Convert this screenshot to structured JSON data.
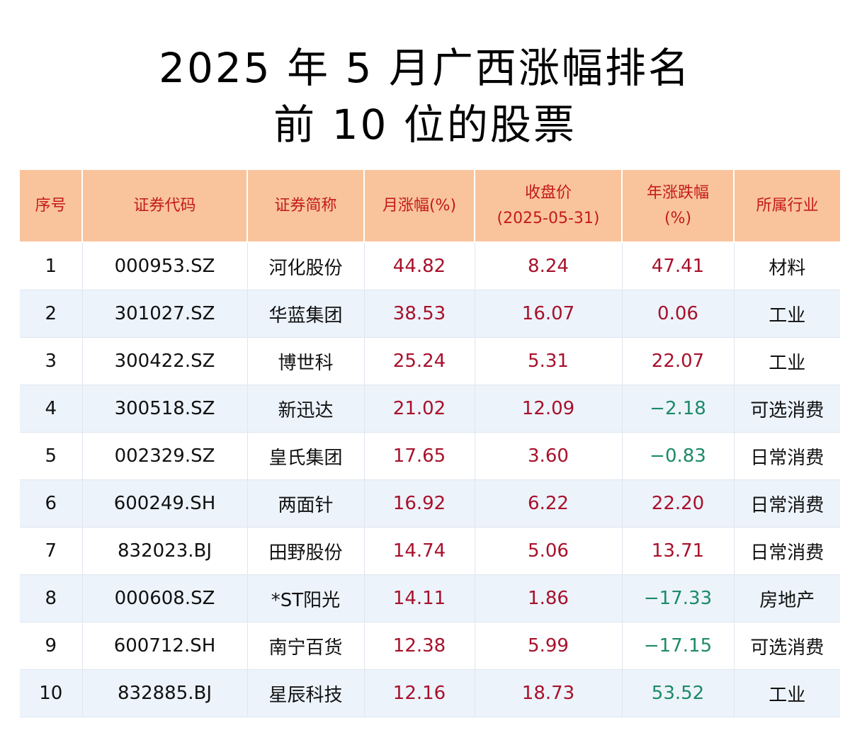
{
  "title": {
    "line1": "2025 年 5 月广西涨幅排名",
    "line2": "前 10 位的股票"
  },
  "colors": {
    "header_bg": "#f9c49c",
    "header_text": "#c41a1a",
    "positive": "#a8112b",
    "negative": "#1d8a68",
    "row_alt_bg": "#ecf3fb"
  },
  "table": {
    "headers": {
      "rank": "序号",
      "code": "证券代码",
      "name": "证券简称",
      "monthly": "月涨幅(%)",
      "close_line1": "收盘价",
      "close_line2": "(2025-05-31)",
      "yearly_line1": "年涨跌幅",
      "yearly_line2": "(%)",
      "industry": "所属行业"
    },
    "rows": [
      {
        "rank": "1",
        "code": "000953.SZ",
        "name": "河化股份",
        "monthly": "44.82",
        "close": "8.24",
        "yearly": "47.41",
        "industry": "材料"
      },
      {
        "rank": "2",
        "code": "301027.SZ",
        "name": "华蓝集团",
        "monthly": "38.53",
        "close": "16.07",
        "yearly": "0.06",
        "industry": "工业"
      },
      {
        "rank": "3",
        "code": "300422.SZ",
        "name": "博世科",
        "monthly": "25.24",
        "close": "5.31",
        "yearly": "22.07",
        "industry": "工业"
      },
      {
        "rank": "4",
        "code": "300518.SZ",
        "name": "新迅达",
        "monthly": "21.02",
        "close": "12.09",
        "yearly": "−2.18",
        "industry": "可选消费"
      },
      {
        "rank": "5",
        "code": "002329.SZ",
        "name": "皇氏集团",
        "monthly": "17.65",
        "close": "3.60",
        "yearly": "−0.83",
        "industry": "日常消费"
      },
      {
        "rank": "6",
        "code": "600249.SH",
        "name": "两面针",
        "monthly": "16.92",
        "close": "6.22",
        "yearly": "22.20",
        "industry": "日常消费"
      },
      {
        "rank": "7",
        "code": "832023.BJ",
        "name": "田野股份",
        "monthly": "14.74",
        "close": "5.06",
        "yearly": "13.71",
        "industry": "日常消费"
      },
      {
        "rank": "8",
        "code": "000608.SZ",
        "name": "*ST阳光",
        "monthly": "14.11",
        "close": "1.86",
        "yearly": "−17.33",
        "industry": "房地产"
      },
      {
        "rank": "9",
        "code": "600712.SH",
        "name": "南宁百货",
        "monthly": "12.38",
        "close": "5.99",
        "yearly": "−17.15",
        "industry": "可选消费"
      },
      {
        "rank": "10",
        "code": "832885.BJ",
        "name": "星辰科技",
        "monthly": "12.16",
        "close": "18.73",
        "yearly": "53.52",
        "industry": "工业"
      }
    ]
  }
}
